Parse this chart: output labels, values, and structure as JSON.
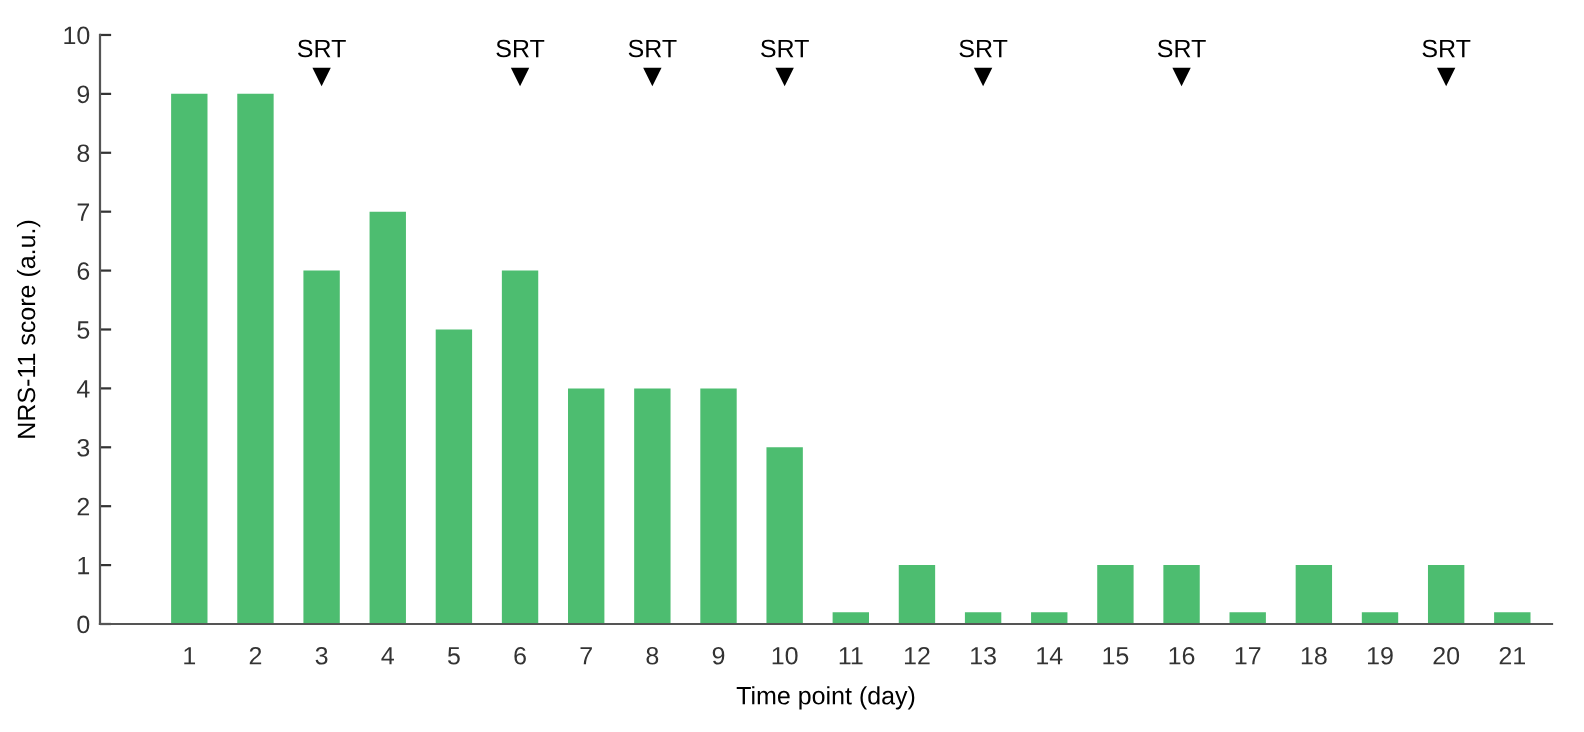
{
  "chart_data": {
    "type": "bar",
    "xlabel": "Time point (day)",
    "ylabel": "NRS-11 score (a.u.)",
    "categories": [
      "1",
      "2",
      "3",
      "4",
      "5",
      "6",
      "7",
      "8",
      "9",
      "10",
      "11",
      "12",
      "13",
      "14",
      "15",
      "16",
      "17",
      "18",
      "19",
      "20",
      "21"
    ],
    "series": [
      {
        "color": "#4dbd70",
        "values": [
          9,
          9,
          6,
          7,
          5,
          6,
          4,
          4,
          4,
          3,
          0.2,
          1,
          0.2,
          0.2,
          1,
          1,
          0.2,
          1,
          0.2,
          1,
          0.2
        ]
      },
      {
        "type": "scatter",
        "color": "#000000",
        "marker": "triangle",
        "x": [
          "3",
          "6",
          "8",
          "10",
          "13",
          "16",
          "20"
        ],
        "values": [
          9.3,
          9.3,
          9.3,
          9.3,
          9.3,
          9.3,
          9.3
        ]
      }
    ],
    "ylim": [
      0,
      10
    ],
    "yticks": [
      0,
      1,
      2,
      3,
      4,
      5,
      6,
      7,
      8,
      9,
      10
    ],
    "grid": false,
    "legend": false,
    "annotations": [
      "SRT",
      "SRT",
      "SRT",
      "SRT",
      "SRT",
      "SRT",
      "SRT"
    ]
  }
}
